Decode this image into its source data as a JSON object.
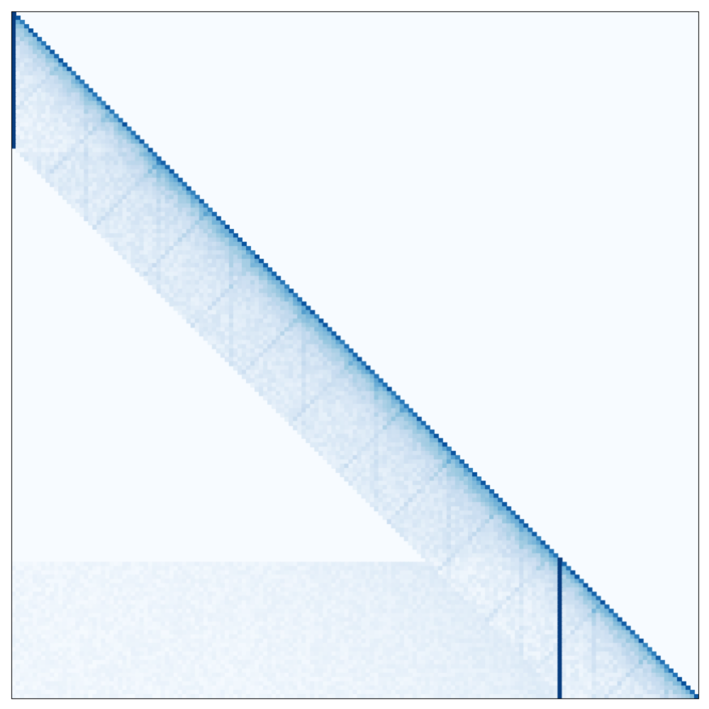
{
  "chart_data": {
    "type": "heatmap",
    "title": "",
    "xlabel": "",
    "ylabel": "",
    "colormap": "Blues",
    "value_range": [
      0,
      1
    ],
    "n_rows": 161,
    "n_cols": 161,
    "grid": false,
    "legend": "none",
    "structure": {
      "lower_triangular": true,
      "band_width_cells": 32,
      "full_lower_region": {
        "rows": [
          129,
          160
        ],
        "cols": [
          0,
          160
        ]
      },
      "strong_columns": [
        {
          "col": 0,
          "rows": [
            0,
            31
          ],
          "value": 0.95
        },
        {
          "col": 128,
          "rows": [
            128,
            160
          ],
          "value": 0.95
        }
      ],
      "diagonal_value": 0.78,
      "off_diagonal_base_value": 0.12
    }
  },
  "colors": {
    "background": "#f7fbff",
    "frame": "#000000",
    "low": "#f7fbff",
    "mid": "#6baed6",
    "high": "#08306b"
  }
}
